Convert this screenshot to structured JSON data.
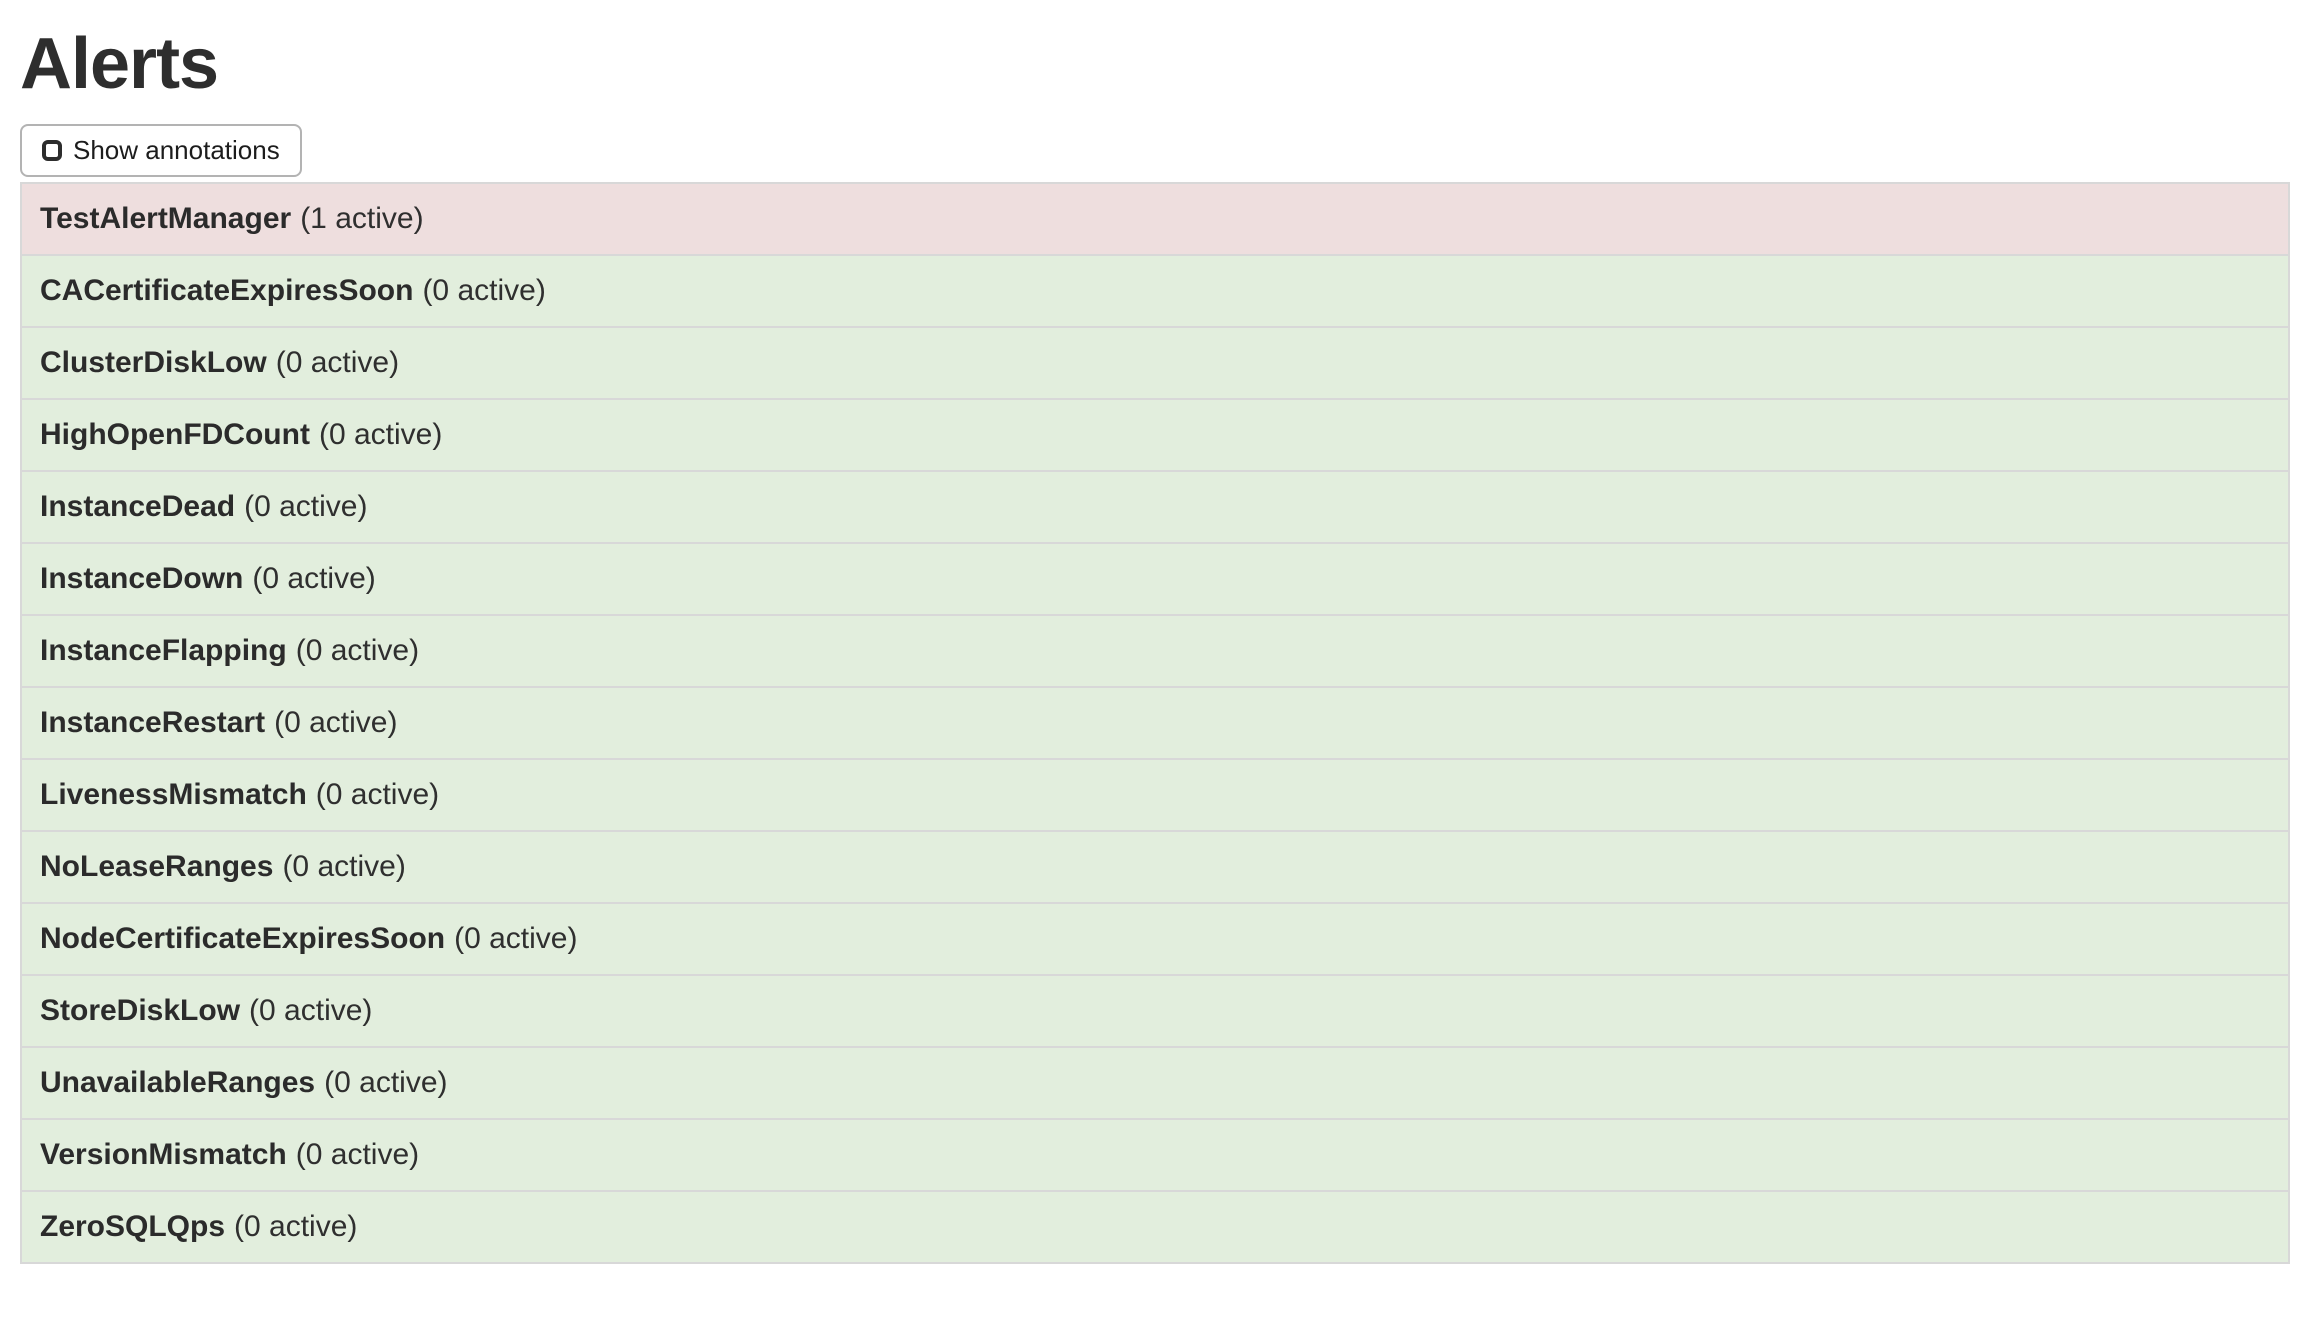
{
  "header": {
    "title": "Alerts"
  },
  "toolbar": {
    "show_annotations_label": "Show annotations",
    "checkbox_checked": false
  },
  "alerts": [
    {
      "name": "TestAlertManager",
      "count_label": "(1 active)",
      "active_count": 1,
      "state": "firing"
    },
    {
      "name": "CACertificateExpiresSoon",
      "count_label": "(0 active)",
      "active_count": 0,
      "state": "inactive"
    },
    {
      "name": "ClusterDiskLow",
      "count_label": "(0 active)",
      "active_count": 0,
      "state": "inactive"
    },
    {
      "name": "HighOpenFDCount",
      "count_label": "(0 active)",
      "active_count": 0,
      "state": "inactive"
    },
    {
      "name": "InstanceDead",
      "count_label": "(0 active)",
      "active_count": 0,
      "state": "inactive"
    },
    {
      "name": "InstanceDown",
      "count_label": "(0 active)",
      "active_count": 0,
      "state": "inactive"
    },
    {
      "name": "InstanceFlapping",
      "count_label": "(0 active)",
      "active_count": 0,
      "state": "inactive"
    },
    {
      "name": "InstanceRestart",
      "count_label": "(0 active)",
      "active_count": 0,
      "state": "inactive"
    },
    {
      "name": "LivenessMismatch",
      "count_label": "(0 active)",
      "active_count": 0,
      "state": "inactive"
    },
    {
      "name": "NoLeaseRanges",
      "count_label": "(0 active)",
      "active_count": 0,
      "state": "inactive"
    },
    {
      "name": "NodeCertificateExpiresSoon",
      "count_label": "(0 active)",
      "active_count": 0,
      "state": "inactive"
    },
    {
      "name": "StoreDiskLow",
      "count_label": "(0 active)",
      "active_count": 0,
      "state": "inactive"
    },
    {
      "name": "UnavailableRanges",
      "count_label": "(0 active)",
      "active_count": 0,
      "state": "inactive"
    },
    {
      "name": "VersionMismatch",
      "count_label": "(0 active)",
      "active_count": 0,
      "state": "inactive"
    },
    {
      "name": "ZeroSQLQps",
      "count_label": "(0 active)",
      "active_count": 0,
      "state": "inactive"
    }
  ],
  "colors": {
    "firing_bg": "#eedede",
    "inactive_bg": "#e2eedd",
    "row_border": "#d8d8d8",
    "button_border": "#b3b3b3",
    "text": "#2f2f2f"
  }
}
